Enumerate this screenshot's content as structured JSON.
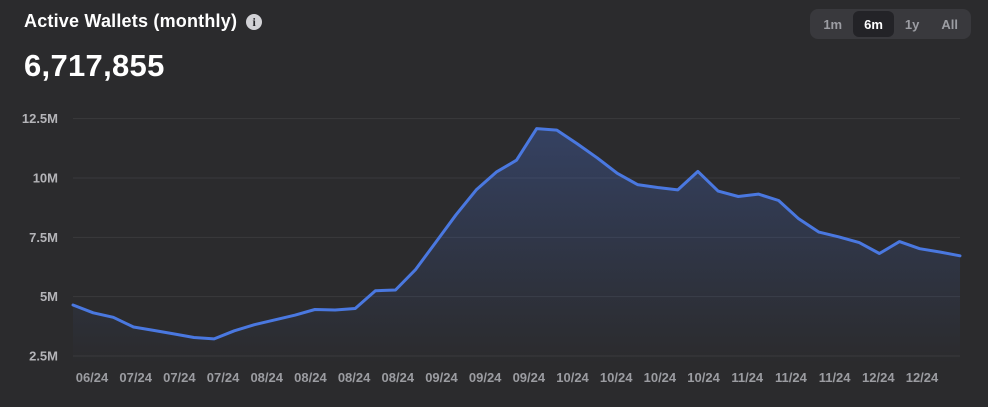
{
  "header": {
    "title": "Active Wallets (monthly)",
    "info_glyph": "i",
    "value": "6,717,855"
  },
  "range_selector": {
    "options": [
      "1m",
      "6m",
      "1y",
      "All"
    ],
    "selected": "6m"
  },
  "colors": {
    "background": "#2b2b2d",
    "line": "#4a78e0",
    "area_fill": "#4c78e4",
    "gridline": "#3a3a3d",
    "y_label": "#b4b4b8",
    "x_label": "#9b9ca1",
    "text_primary": "#ffffff",
    "selector_bg": "#39393d",
    "selector_active_bg": "#232327"
  },
  "chart_data": {
    "type": "area",
    "title": "Active Wallets (monthly)",
    "current_value": 6717855,
    "grid": "horizontal",
    "legend": "none",
    "ylim_millions": [
      2.5,
      12.5
    ],
    "y_axis": {
      "tick_labels": [
        "2.5M",
        "5M",
        "7.5M",
        "10M",
        "12.5M"
      ],
      "tick_values_millions": [
        2.5,
        5,
        7.5,
        10,
        12.5
      ]
    },
    "x_axis": {
      "tick_labels": [
        "06/24",
        "07/24",
        "07/24",
        "07/24",
        "08/24",
        "08/24",
        "08/24",
        "08/24",
        "09/24",
        "09/24",
        "09/24",
        "10/24",
        "10/24",
        "10/24",
        "10/24",
        "11/24",
        "11/24",
        "11/24",
        "12/24",
        "12/24"
      ]
    },
    "series": [
      {
        "name": "Active Wallets (monthly)",
        "unit": "millions",
        "values_millions": [
          4.65,
          4.32,
          4.13,
          3.72,
          3.58,
          3.43,
          3.28,
          3.22,
          3.56,
          3.82,
          4.02,
          4.22,
          4.46,
          4.44,
          4.5,
          5.25,
          5.28,
          6.15,
          7.3,
          8.45,
          9.5,
          10.25,
          10.75,
          12.08,
          12.02,
          11.45,
          10.85,
          10.2,
          9.72,
          9.6,
          9.5,
          10.28,
          9.45,
          9.22,
          9.32,
          9.05,
          8.28,
          7.72,
          7.52,
          7.28,
          6.82,
          7.32,
          7.02,
          6.88,
          6.72
        ]
      }
    ]
  }
}
